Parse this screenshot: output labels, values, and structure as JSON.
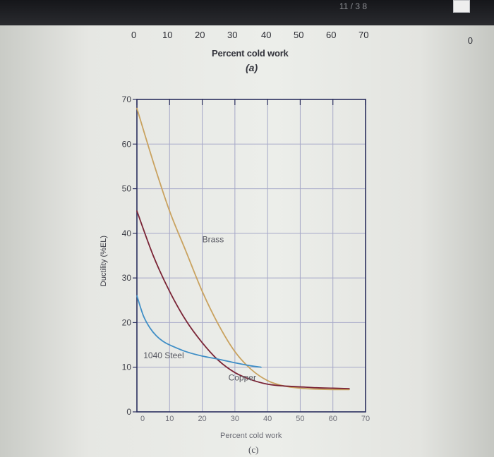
{
  "top_bar": {
    "title": "11 / 3 8"
  },
  "previous_chart": {
    "tick_labels": [
      "0",
      "10",
      "20",
      "30",
      "40",
      "50",
      "60",
      "70"
    ],
    "xlabel": "Percent cold work",
    "panel_label": "(a)",
    "edge_label": "0"
  },
  "chart_data": {
    "type": "line",
    "title": "",
    "xlabel": "Percent cold work",
    "ylabel": "Ductility (%EL)",
    "panel_label": "(c)",
    "xlim": [
      0,
      70
    ],
    "ylim": [
      0,
      70
    ],
    "xticks": [
      "0",
      "10",
      "20",
      "30",
      "40",
      "50",
      "60",
      "70"
    ],
    "yticks": [
      "0",
      "10",
      "20",
      "30",
      "40",
      "50",
      "60",
      "70"
    ],
    "grid": true,
    "series": [
      {
        "name": "Brass",
        "color": "#c9a25f",
        "x": [
          0,
          5,
          10,
          15,
          20,
          25,
          30,
          35,
          40,
          45,
          50,
          55,
          60,
          65
        ],
        "y": [
          68,
          56,
          45,
          36,
          27,
          19.5,
          13.5,
          9.5,
          7,
          5.8,
          5.3,
          5.1,
          5.0,
          5.0
        ]
      },
      {
        "name": "Copper",
        "color": "#7a2436",
        "x": [
          0,
          5,
          10,
          15,
          20,
          25,
          30,
          35,
          40,
          45,
          50,
          55,
          60,
          65
        ],
        "y": [
          45,
          35,
          27,
          20.5,
          15.5,
          11.5,
          8.8,
          7.2,
          6.2,
          5.8,
          5.6,
          5.4,
          5.3,
          5.2
        ]
      },
      {
        "name": "1040 Steel",
        "color": "#3f8ec6",
        "x": [
          0,
          2,
          4,
          6,
          8,
          10,
          15,
          20,
          25,
          30,
          35,
          38
        ],
        "y": [
          26,
          21.5,
          18.8,
          17.0,
          15.8,
          15.0,
          13.5,
          12.5,
          11.8,
          11.0,
          10.3,
          10.0
        ]
      }
    ],
    "annotations": [
      {
        "text": "Brass",
        "x": 20,
        "y": 38
      },
      {
        "text": "Copper",
        "x": 28,
        "y": 7
      },
      {
        "text": "1040 Steel",
        "x": 2,
        "y": 12
      }
    ]
  }
}
